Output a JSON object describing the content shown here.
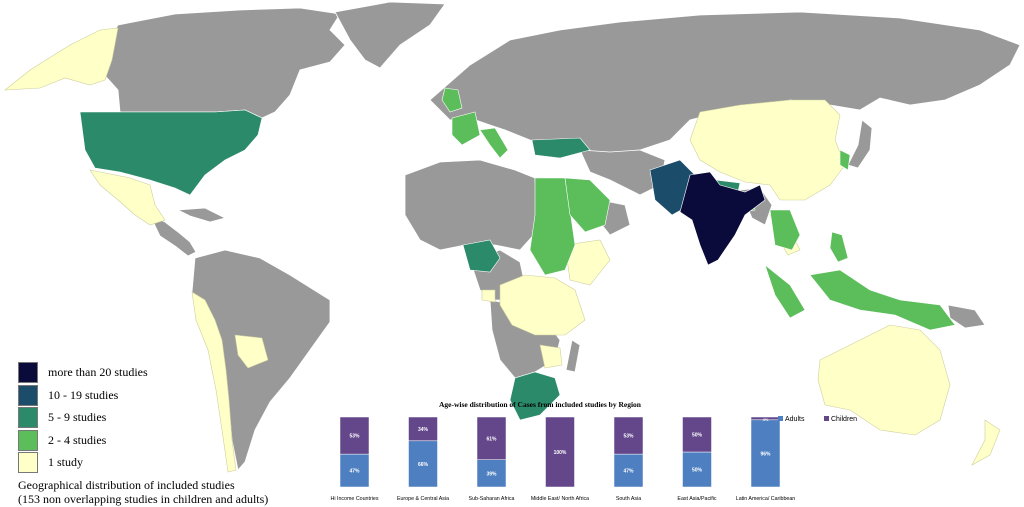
{
  "legend": {
    "items": [
      {
        "label": "more than 20 studies",
        "color": "#0b0b3b"
      },
      {
        "label": "10 - 19 studies",
        "color": "#1b4d6b"
      },
      {
        "label": "5 - 9 studies",
        "color": "#2b8a6a"
      },
      {
        "label": "2 - 4 studies",
        "color": "#5cbd5b"
      },
      {
        "label": "1 study",
        "color": "#ffffc8"
      }
    ]
  },
  "caption": {
    "line1": "Geographical distribution of included studies",
    "line2": "(153 non overlapping studies in children and adults)"
  },
  "colors": {
    "no_data": "#999999",
    "adults": "#4e7fc0",
    "children": "#63478a"
  },
  "chart_data": {
    "type": "bar",
    "stacked": true,
    "title": "Age-wise distribution of Cases from included studies by Region",
    "categories": [
      "Hi Income Countries",
      "Europe & Central Asia",
      "Sub-Saharan Africa",
      "Middle East/ North Africa",
      "South Asia",
      "East Asia/Pacific",
      "Latin America/ Caribbean"
    ],
    "series": [
      {
        "name": "Adults",
        "values": [
          47,
          66,
          39,
          0,
          47,
          50,
          96
        ],
        "labels": [
          "47%",
          "66%",
          "39%",
          "",
          "47%",
          "50%",
          "96%"
        ]
      },
      {
        "name": "Children",
        "values": [
          53,
          34,
          61,
          100,
          53,
          50,
          4
        ],
        "labels": [
          "53%",
          "34%",
          "61%",
          "100%",
          "53%",
          "50%",
          "4%"
        ]
      }
    ],
    "ylim": [
      0,
      100
    ],
    "legend_position": "top-right"
  }
}
